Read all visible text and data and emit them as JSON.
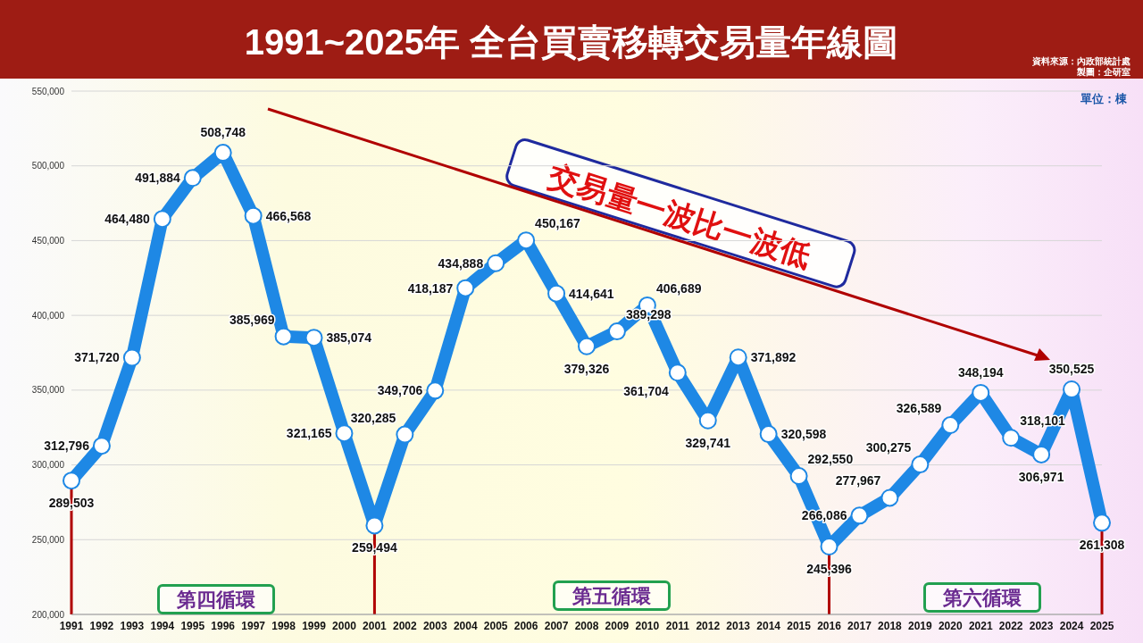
{
  "chart_data": {
    "type": "line",
    "title": "1991~2025年 全台買賣移轉交易量年線圖",
    "categories": [
      "1991",
      "1992",
      "1993",
      "1994",
      "1995",
      "1996",
      "1997",
      "1998",
      "1999",
      "2000",
      "2001",
      "2002",
      "2003",
      "2004",
      "2005",
      "2006",
      "2007",
      "2008",
      "2009",
      "2010",
      "2011",
      "2012",
      "2013",
      "2014",
      "2015",
      "2016",
      "2017",
      "2018",
      "2019",
      "2020",
      "2021",
      "2022",
      "2023",
      "2024",
      "2025"
    ],
    "series": [
      {
        "color": "#1e88e5",
        "values": [
          289503,
          312796,
          371720,
          464480,
          491884,
          508748,
          466568,
          385969,
          385074,
          321165,
          259494,
          320285,
          349706,
          418187,
          434888,
          450167,
          414641,
          379326,
          389298,
          406689,
          361704,
          329741,
          371892,
          320598,
          292550,
          245396,
          266086,
          277967,
          300275,
          326589,
          348194,
          318101,
          306971,
          350525,
          261308
        ]
      }
    ],
    "ylim": [
      200000,
      550000
    ],
    "yticks": [
      {
        "value": 200000,
        "label": "200,000"
      },
      {
        "value": 250000,
        "label": "250,000"
      },
      {
        "value": 300000,
        "label": "300,000"
      },
      {
        "value": 350000,
        "label": "350,000"
      },
      {
        "value": 400000,
        "label": "400,000"
      },
      {
        "value": 450000,
        "label": "450,000"
      },
      {
        "value": 500000,
        "label": "500,000"
      },
      {
        "value": 550000,
        "label": "550,000"
      }
    ],
    "value_labels": [
      "289,503",
      "312,796",
      "371,720",
      "464,480",
      "491,884",
      "508,748",
      "466,568",
      "385,969",
      "385,074",
      "321,165",
      "259,494",
      "320,285",
      "349,706",
      "418,187",
      "434,888",
      "450,167",
      "414,641",
      "379,326",
      "389,298",
      "406,689",
      "361,704",
      "329,741",
      "371,892",
      "320,598",
      "292,550",
      "245,396",
      "266,086",
      "277,967",
      "300,275",
      "326,589",
      "348,194",
      "318,101",
      "306,971",
      "350,525",
      "261,308"
    ],
    "grid": "y",
    "marker": "circle",
    "line_style": "solid",
    "legend": false,
    "ref_lines": [
      {
        "axis": "x",
        "value": "1991",
        "color": "#b00000"
      },
      {
        "axis": "x",
        "value": "2001",
        "color": "#b00000"
      },
      {
        "axis": "x",
        "value": "2016",
        "color": "#b00000"
      },
      {
        "axis": "x",
        "value": "2025",
        "color": "#b00000"
      }
    ],
    "annotations": [
      "單位：棟",
      "資料來源：內政部統計處",
      "製圖：企研室",
      "交易量一波比一波低",
      "第四循環",
      "第五循環",
      "第六循環"
    ]
  }
}
